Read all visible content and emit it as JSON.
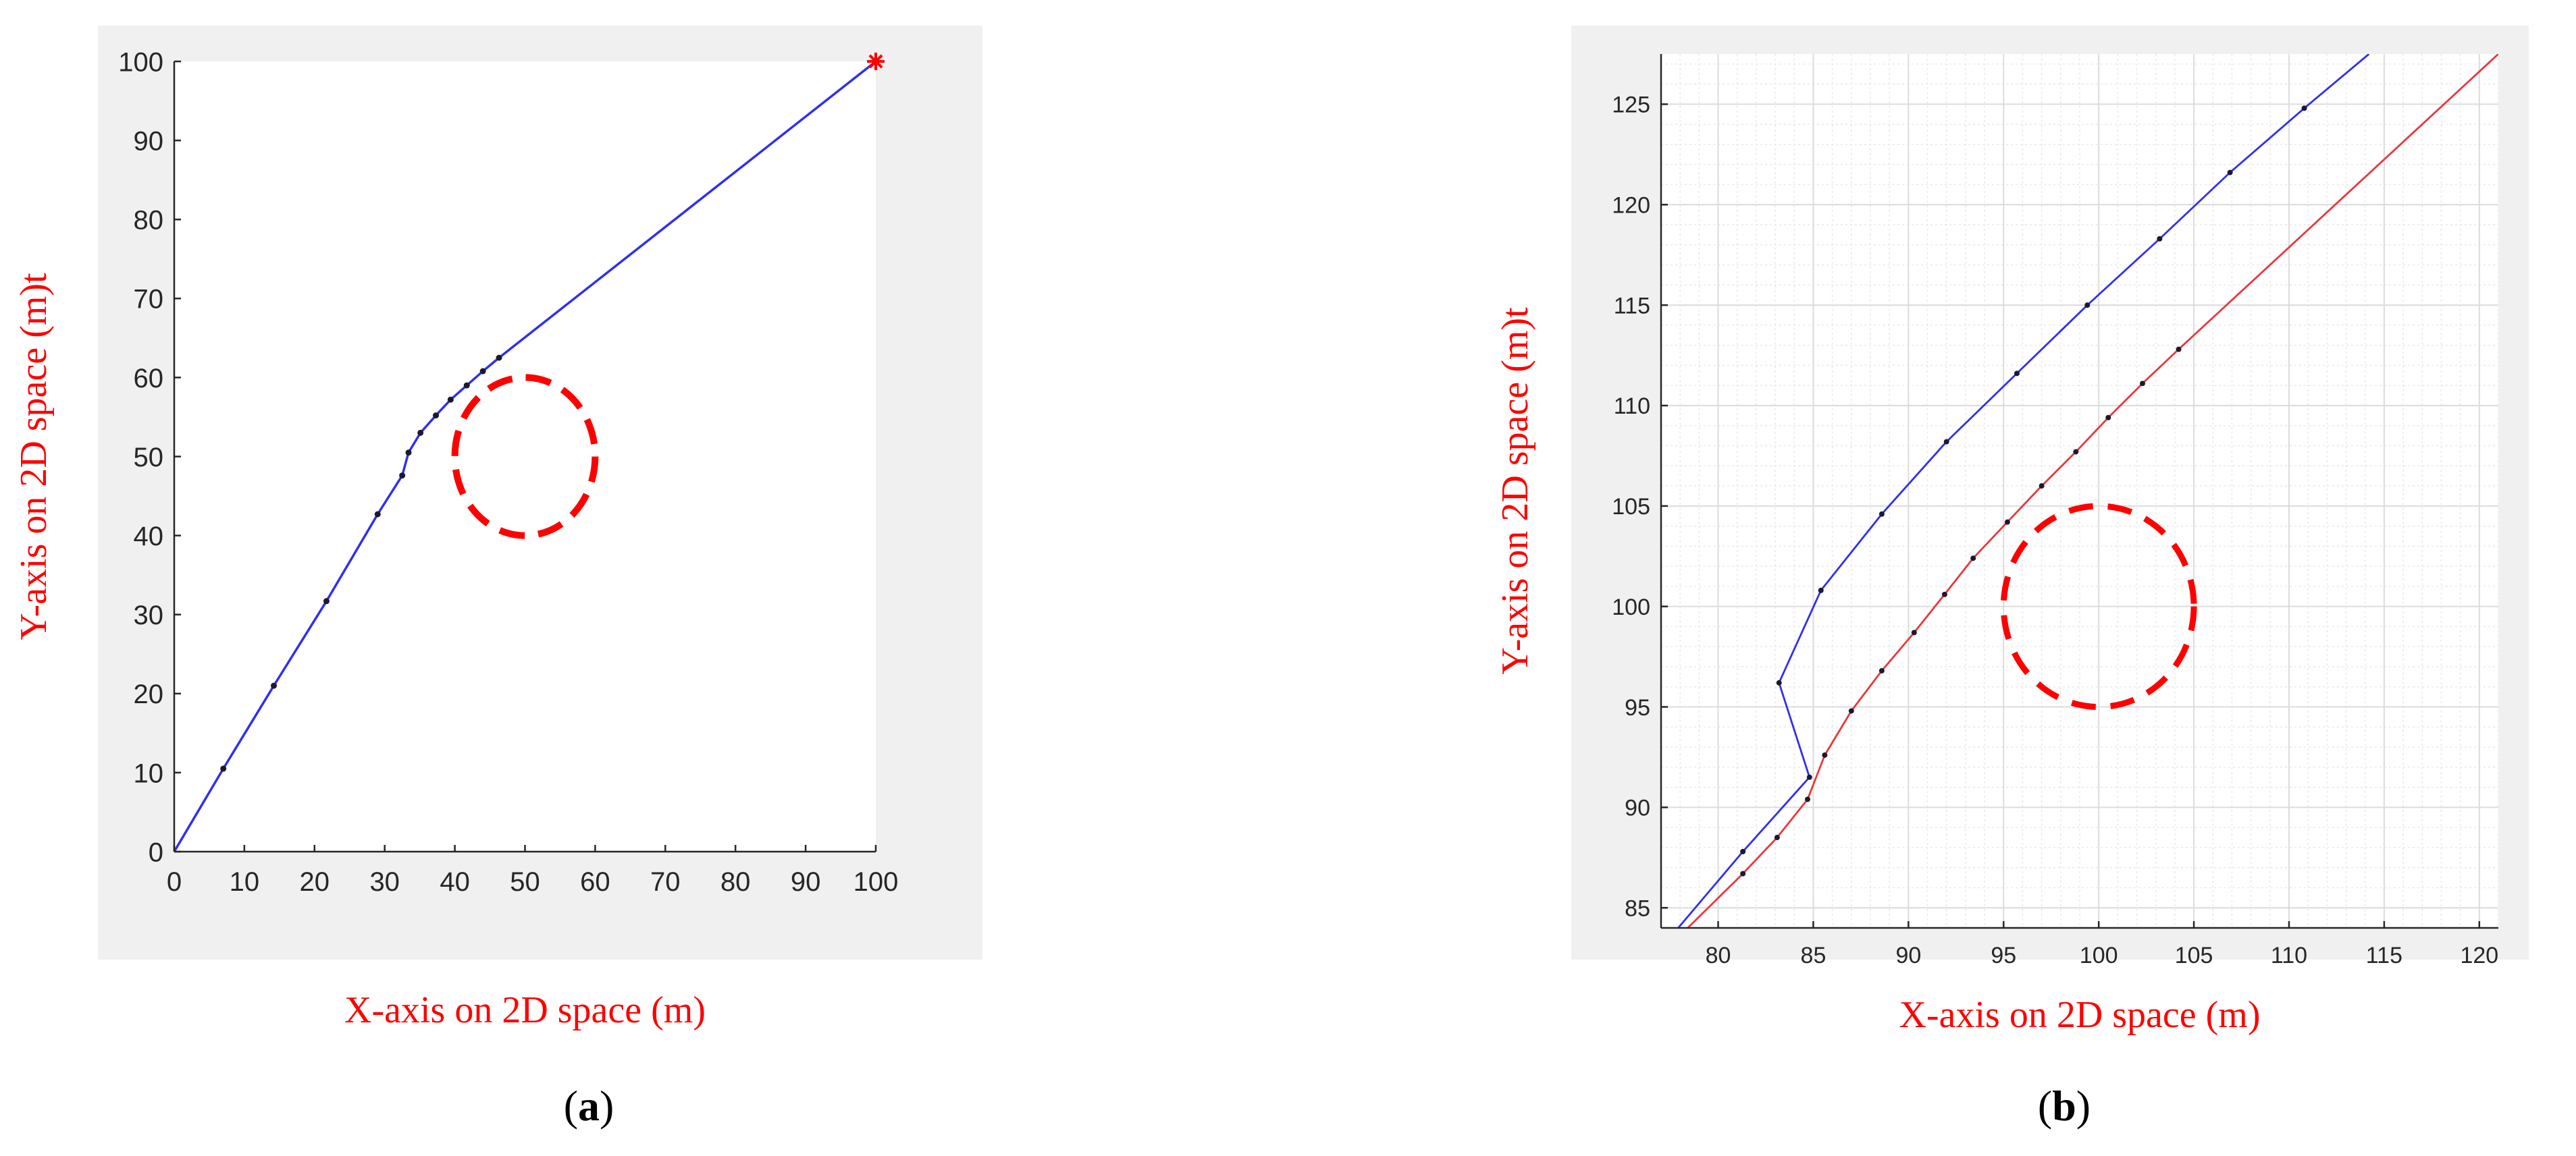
{
  "figure": {
    "captions": {
      "a": "a",
      "b": "b"
    }
  },
  "chart_data": [
    {
      "id": "a",
      "type": "line",
      "title": "",
      "xlabel": "X-axis on 2D space (m)",
      "ylabel": "Y-axis on 2D space (m)t",
      "xlim": [
        0,
        100
      ],
      "ylim": [
        0,
        100
      ],
      "xticks": [
        0,
        10,
        20,
        30,
        40,
        50,
        60,
        70,
        80,
        90,
        100
      ],
      "yticks": [
        0,
        10,
        20,
        30,
        40,
        50,
        60,
        70,
        80,
        90,
        100
      ],
      "grid": false,
      "legend": "none",
      "series": [
        {
          "color": "#2f2ff2",
          "points": [
            [
              0,
              0
            ],
            [
              7,
              10.5
            ],
            [
              14.2,
              21
            ],
            [
              21.7,
              31.7
            ],
            [
              29,
              42.7
            ],
            [
              32.5,
              47.6
            ],
            [
              33.4,
              50.5
            ],
            [
              35.1,
              53
            ],
            [
              37.3,
              55.2
            ],
            [
              39.4,
              57.2
            ],
            [
              41.7,
              59
            ],
            [
              44,
              60.8
            ],
            [
              46.3,
              62.5
            ],
            [
              100,
              100
            ]
          ],
          "markers": [
            [
              7,
              10.5
            ],
            [
              14.2,
              21
            ],
            [
              21.7,
              31.7
            ],
            [
              29,
              42.7
            ],
            [
              32.5,
              47.6
            ],
            [
              33.4,
              50.5
            ],
            [
              35.1,
              53
            ],
            [
              37.3,
              55.2
            ],
            [
              39.4,
              57.2
            ],
            [
              41.7,
              59
            ],
            [
              44,
              60.8
            ],
            [
              46.3,
              62.5
            ]
          ]
        }
      ],
      "obstacle": {
        "center": [
          50,
          50
        ],
        "radius": 10,
        "color": "#ff0000",
        "style": "dashed"
      },
      "target": {
        "point": [
          100,
          100
        ],
        "color": "#ff0000",
        "marker": "asterisk"
      }
    },
    {
      "id": "b",
      "type": "line",
      "title": "",
      "xlabel": "X-axis on 2D space (m)",
      "ylabel": "Y-axis on 2D space (m)t",
      "xlim": [
        77,
        121
      ],
      "ylim": [
        84,
        127.5
      ],
      "xticks": [
        80,
        85,
        90,
        95,
        100,
        105,
        110,
        115,
        120
      ],
      "yticks": [
        85,
        90,
        95,
        100,
        105,
        110,
        115,
        120,
        125
      ],
      "grid": true,
      "minor_grid": true,
      "legend": "none",
      "series": [
        {
          "color": "#2f2ff2",
          "points": [
            [
              77.9,
              84
            ],
            [
              81.3,
              87.8
            ],
            [
              84.8,
              91.5
            ],
            [
              83.2,
              96.2
            ],
            [
              85.4,
              100.8
            ],
            [
              88.6,
              104.6
            ],
            [
              92,
              108.2
            ],
            [
              95.7,
              111.6
            ],
            [
              99.4,
              115
            ],
            [
              103.2,
              118.3
            ],
            [
              106.9,
              121.6
            ],
            [
              110.8,
              124.8
            ],
            [
              114.2,
              127.5
            ]
          ],
          "markers": [
            [
              81.3,
              87.8
            ],
            [
              84.8,
              91.5
            ],
            [
              83.2,
              96.2
            ],
            [
              85.4,
              100.8
            ],
            [
              88.6,
              104.6
            ],
            [
              92,
              108.2
            ],
            [
              95.7,
              111.6
            ],
            [
              99.4,
              115
            ],
            [
              103.2,
              118.3
            ],
            [
              106.9,
              121.6
            ],
            [
              110.8,
              124.8
            ]
          ]
        },
        {
          "color": "#e8383d",
          "points": [
            [
              78.4,
              84
            ],
            [
              81.3,
              86.7
            ],
            [
              83.1,
              88.5
            ],
            [
              84.7,
              90.4
            ],
            [
              85.6,
              92.6
            ],
            [
              87,
              94.8
            ],
            [
              88.6,
              96.8
            ],
            [
              90.3,
              98.7
            ],
            [
              91.9,
              100.6
            ],
            [
              93.4,
              102.4
            ],
            [
              95.2,
              104.2
            ],
            [
              97,
              106
            ],
            [
              98.8,
              107.7
            ],
            [
              100.5,
              109.4
            ],
            [
              102.3,
              111.1
            ],
            [
              104.2,
              112.8
            ],
            [
              121,
              127.5
            ]
          ],
          "markers": [
            [
              81.3,
              86.7
            ],
            [
              83.1,
              88.5
            ],
            [
              84.7,
              90.4
            ],
            [
              85.6,
              92.6
            ],
            [
              87,
              94.8
            ],
            [
              88.6,
              96.8
            ],
            [
              90.3,
              98.7
            ],
            [
              91.9,
              100.6
            ],
            [
              93.4,
              102.4
            ],
            [
              95.2,
              104.2
            ],
            [
              97,
              106
            ],
            [
              98.8,
              107.7
            ],
            [
              100.5,
              109.4
            ],
            [
              102.3,
              111.1
            ],
            [
              104.2,
              112.8
            ]
          ]
        }
      ],
      "obstacle": {
        "center": [
          100,
          100
        ],
        "radius": 5,
        "color": "#ff0000",
        "style": "dashed"
      }
    }
  ]
}
